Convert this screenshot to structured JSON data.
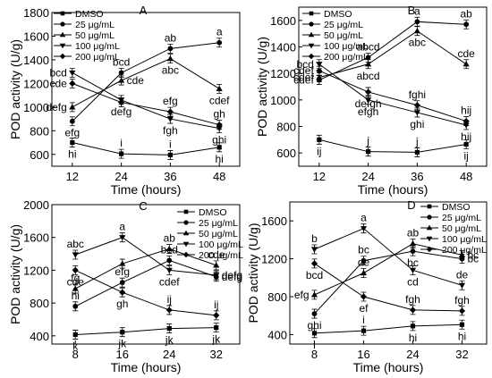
{
  "figure": {
    "description": "Four-panel POD activity line charts"
  },
  "legend_series": [
    "DMSO",
    "25  μg/mL",
    "50  μg/mL",
    "100 μg/mL",
    "200 μg/mL"
  ],
  "chart_data": [
    {
      "type": "line",
      "panel": "A",
      "xlabel": "Time (hours)",
      "ylabel": "POD activity (U/g)",
      "x": [
        12,
        24,
        36,
        48
      ],
      "xlim": [
        7,
        53
      ],
      "ylim": [
        500,
        1800
      ],
      "yticks": [
        600,
        800,
        1000,
        1200,
        1400,
        1600,
        1800
      ],
      "series": [
        {
          "name": "DMSO",
          "marker": "square",
          "values": [
            700,
            605,
            595,
            660
          ],
          "labels": [
            "hi",
            "i",
            "i",
            "hi"
          ],
          "label_pos": [
            "below",
            "above",
            "above",
            "below"
          ]
        },
        {
          "name": "25  μg/mL",
          "marker": "circle",
          "values": [
            880,
            1290,
            1495,
            1545
          ],
          "labels": [
            "efg",
            "bcd",
            "ab",
            "a"
          ],
          "label_pos": [
            "below",
            "above",
            "above",
            "above"
          ]
        },
        {
          "name": "50  μg/mL",
          "marker": "triangle-up",
          "values": [
            1000,
            1225,
            1410,
            1155
          ],
          "labels": [
            "defg",
            "cde",
            "abc",
            "cdef"
          ],
          "label_pos": [
            "left",
            "right",
            "below",
            "below"
          ]
        },
        {
          "name": "100 μg/mL",
          "marker": "triangle-down",
          "values": [
            1290,
            1060,
            900,
            820
          ],
          "labels": [
            "bcd",
            "defg",
            "fgh",
            "ghi"
          ],
          "label_pos": [
            "left",
            "below",
            "below",
            "below"
          ]
        },
        {
          "name": "200 μg/mL",
          "marker": "diamond",
          "values": [
            1200,
            1040,
            960,
            850
          ],
          "labels": [
            "cde",
            "",
            "efg",
            "gh"
          ],
          "label_pos": [
            "left",
            "below",
            "above",
            "above"
          ]
        }
      ]
    },
    {
      "type": "line",
      "panel": "B",
      "xlabel": "Time (hours)",
      "ylabel": "POD activity (U/g)",
      "x": [
        12,
        24,
        36,
        48
      ],
      "xlim": [
        7,
        53
      ],
      "ylim": [
        500,
        1700
      ],
      "yticks": [
        600,
        800,
        1000,
        1200,
        1400,
        1600
      ],
      "series": [
        {
          "name": "DMSO",
          "marker": "square",
          "values": [
            700,
            610,
            605,
            665
          ],
          "labels": [
            "ij",
            "j",
            "j",
            "ij"
          ],
          "label_pos": [
            "below",
            "above",
            "above",
            "below"
          ]
        },
        {
          "name": "25  μg/mL",
          "marker": "circle",
          "values": [
            1150,
            1320,
            1590,
            1570
          ],
          "labels": [
            "cdef",
            "abcd",
            "a",
            "ab"
          ],
          "label_pos": [
            "left",
            "above",
            "above",
            "above"
          ]
        },
        {
          "name": "50  μg/mL",
          "marker": "triangle-up",
          "values": [
            1170,
            1270,
            1520,
            1270
          ],
          "labels": [
            "cdef",
            "abcd",
            "abc",
            "cde"
          ],
          "label_pos": [
            "left",
            "below",
            "below",
            "above"
          ]
        },
        {
          "name": "100 μg/mL",
          "marker": "triangle-down",
          "values": [
            1270,
            1000,
            905,
            810
          ],
          "labels": [
            "bcd",
            "efgh",
            "ghi",
            "hij"
          ],
          "label_pos": [
            "left",
            "below",
            "below",
            "below"
          ]
        },
        {
          "name": "200 μg/mL",
          "marker": "diamond",
          "values": [
            1220,
            1060,
            960,
            840
          ],
          "labels": [
            "cdef",
            "defgh",
            "fghi",
            "hij"
          ],
          "label_pos": [
            "left",
            "below",
            "above",
            "above"
          ]
        }
      ]
    },
    {
      "type": "line",
      "panel": "C",
      "xlabel": "Time (hours)",
      "ylabel": "POD activity (U/g)",
      "x": [
        8,
        16,
        24,
        32
      ],
      "xlim": [
        4,
        36
      ],
      "ylim": [
        300,
        2000
      ],
      "yticks": [
        400,
        800,
        1200,
        1600,
        2000
      ],
      "series": [
        {
          "name": "DMSO",
          "marker": "square",
          "values": [
            415,
            445,
            490,
            500
          ],
          "labels": [
            "k",
            "jk",
            "jk",
            "jk"
          ],
          "label_pos": [
            "below",
            "below",
            "below",
            "below"
          ]
        },
        {
          "name": "25  μg/mL",
          "marker": "circle",
          "values": [
            760,
            1050,
            1320,
            1120
          ],
          "labels": [
            "hi",
            "efg",
            "bcd",
            "defg"
          ],
          "label_pos": [
            "above",
            "above",
            "above",
            "right"
          ]
        },
        {
          "name": "50  μg/mL",
          "marker": "triangle-up",
          "values": [
            975,
            1280,
            1460,
            1260
          ],
          "labels": [
            "fg",
            "",
            "ab",
            "cde"
          ],
          "label_pos": [
            "above",
            "above",
            "above",
            "above"
          ]
        },
        {
          "name": "100 μg/mL",
          "marker": "triangle-down",
          "values": [
            1390,
            1600,
            1200,
            1140
          ],
          "labels": [
            "abc",
            "a",
            "cdef",
            "defg"
          ],
          "label_pos": [
            "above",
            "above",
            "below",
            "right"
          ]
        },
        {
          "name": "200 μg/mL",
          "marker": "diamond",
          "values": [
            1200,
            930,
            715,
            650
          ],
          "labels": [
            "cde",
            "gh",
            "ij",
            "ij"
          ],
          "label_pos": [
            "below",
            "below",
            "above",
            "above"
          ]
        }
      ]
    },
    {
      "type": "line",
      "panel": "D",
      "xlabel": "Time (hours)",
      "ylabel": "POD activity (U/g)",
      "x": [
        8,
        16,
        24,
        32
      ],
      "xlim": [
        4,
        36
      ],
      "ylim": [
        300,
        1800
      ],
      "yticks": [
        400,
        800,
        1200,
        1600
      ],
      "series": [
        {
          "name": "DMSO",
          "marker": "square",
          "values": [
            415,
            440,
            490,
            505
          ],
          "labels": [
            "i",
            "i",
            "hi",
            "hi"
          ],
          "label_pos": [
            "below",
            "above",
            "below",
            "below"
          ]
        },
        {
          "name": "25  μg/mL",
          "marker": "circle",
          "values": [
            620,
            1180,
            1280,
            1200
          ],
          "labels": [
            "ghi",
            "bc",
            "bc",
            "bc"
          ],
          "label_pos": [
            "below",
            "above",
            "below",
            "right"
          ]
        },
        {
          "name": "50  μg/mL",
          "marker": "triangle-up",
          "values": [
            820,
            1050,
            1360,
            1240
          ],
          "labels": [
            "efg",
            "de",
            "ab",
            "bc"
          ],
          "label_pos": [
            "left",
            "above",
            "above",
            "right"
          ]
        },
        {
          "name": "100 μg/mL",
          "marker": "triangle-down",
          "values": [
            1300,
            1520,
            1080,
            920
          ],
          "labels": [
            "b",
            "a",
            "cd",
            "de"
          ],
          "label_pos": [
            "above",
            "above",
            "below",
            "above"
          ]
        },
        {
          "name": "200 μg/mL",
          "marker": "diamond",
          "values": [
            1150,
            800,
            660,
            650
          ],
          "labels": [
            "bcd",
            "ef",
            "fgh",
            "fgh"
          ],
          "label_pos": [
            "below",
            "below",
            "above",
            "above"
          ]
        }
      ]
    }
  ]
}
